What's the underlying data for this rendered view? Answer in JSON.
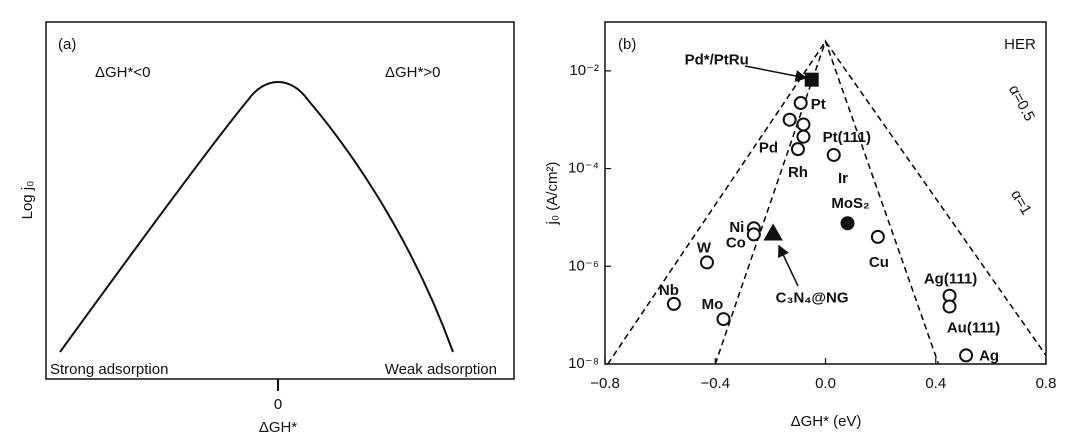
{
  "chart_data": [
    {
      "type": "schematic",
      "panel": "(a)",
      "left_note": "ΔGH*<0",
      "right_note": "ΔGH*>0",
      "y_label": "Log j₀",
      "x_label": "ΔGH*",
      "left_end": "Strong adsorption",
      "right_end": "Weak adsorption",
      "xticks": [
        0
      ]
    },
    {
      "type": "scatter",
      "panel": "(b)",
      "title": "HER",
      "x_label": "ΔGH* (eV)",
      "y_label": "j₀ (A/cm²)",
      "log_y": true,
      "xlim": [
        -0.8,
        0.8
      ],
      "ylim": [
        1e-08,
        0.1
      ],
      "xticks": [
        {
          "value": -0.8,
          "label": "−0.8"
        },
        {
          "value": -0.4,
          "label": "−0.4"
        },
        {
          "value": 0,
          "label": "0.0"
        },
        0.4,
        0.8
      ],
      "yticks": [
        {
          "value": 1e-08,
          "label": "10⁻⁸"
        },
        {
          "value": 1e-06,
          "label": "10⁻⁶"
        },
        {
          "value": 0.0001,
          "label": "10⁻⁴"
        },
        {
          "value": 0.01,
          "label": "10⁻²"
        }
      ],
      "x": [
        -0.05,
        -0.09,
        -0.13,
        -0.08,
        -0.08,
        -0.1,
        0.03,
        0.08,
        0.19,
        -0.26,
        -0.26,
        -0.19,
        -0.43,
        -0.55,
        -0.37,
        0.45,
        0.45,
        0.51
      ],
      "values": [
        0.0066,
        0.0022,
        0.001,
        0.0008,
        0.00045,
        0.00025,
        0.00019,
        7.6e-06,
        4e-06,
        6e-06,
        4.5e-06,
        4.7e-06,
        1.2e-06,
        1.7e-07,
        8.3e-08,
        2.5e-07,
        1.5e-07,
        1.5e-08
      ],
      "labels": [
        "Pd*/PtRu",
        "Pt",
        null,
        null,
        "Pd",
        "Rh",
        "Pt(111)",
        "MoS₂",
        "Cu",
        "Ni",
        "Co",
        "C₃N₄@NG",
        "W",
        "Nb",
        "Mo",
        "Ag(111)",
        "Au(111)",
        "Ag"
      ],
      "markers": [
        "square-filled",
        "circle",
        "circle",
        "circle",
        "circle",
        "circle",
        "circle",
        "circle-filled",
        "circle",
        "circle",
        "circle",
        "triangle-filled",
        "circle",
        "circle",
        "circle",
        "circle",
        "circle",
        "circle"
      ],
      "annotation": "Ir",
      "series": [
        {
          "name": "α=0.5",
          "color": "#000000",
          "x": [
            -0.79,
            0.0,
            0.8
          ],
          "values": [
            1e-08,
            0.04,
            1.5e-08
          ]
        },
        {
          "name": "α=1",
          "color": "#000000",
          "x": [
            -0.4,
            0.0,
            0.41
          ],
          "values": [
            1e-08,
            0.04,
            1e-08
          ]
        }
      ]
    }
  ]
}
